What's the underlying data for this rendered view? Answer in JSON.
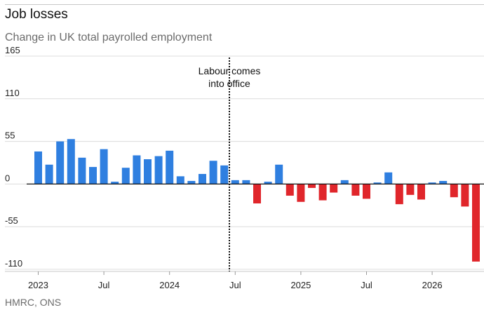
{
  "header": {
    "title": "Job losses",
    "subtitle": "Change in UK total payrolled employment"
  },
  "footer": {
    "source": "HMRC, ONS"
  },
  "chart_data": {
    "type": "bar",
    "title": "Job losses",
    "subtitle": "Change in UK total payrolled employment",
    "xlabel": "",
    "ylabel": "",
    "ylim": [
      -110,
      165
    ],
    "yticks": [
      165,
      110,
      55,
      0,
      -55,
      -110
    ],
    "grid": true,
    "colors": {
      "positive": "#2f7fe0",
      "negative": "#e0262b",
      "annotation_line": "#111111"
    },
    "categories": [
      "2023-01",
      "2023-02",
      "2023-03",
      "2023-04",
      "2023-05",
      "2023-06",
      "2023-07",
      "2023-08",
      "2023-09",
      "2023-10",
      "2023-11",
      "2023-12",
      "2024-01",
      "2024-02",
      "2024-03",
      "2024-04",
      "2024-05",
      "2024-06",
      "2024-07",
      "2024-08",
      "2024-09",
      "2024-10",
      "2024-11",
      "2024-12",
      "2025-01",
      "2025-02",
      "2025-03",
      "2025-04",
      "2025-05",
      "2025-06",
      "2025-07",
      "2025-08",
      "2025-09",
      "2025-10",
      "2025-11",
      "2025-12",
      "2026-01",
      "2026-02",
      "2026-03",
      "2026-04",
      "2026-05"
    ],
    "values": [
      42,
      25,
      55,
      58,
      34,
      22,
      45,
      3,
      21,
      37,
      32,
      36,
      43,
      10,
      4,
      13,
      30,
      24,
      5,
      5,
      -25,
      3,
      25,
      -15,
      -23,
      -5,
      -21,
      -11,
      5,
      -15,
      -19,
      2,
      15,
      -26,
      -14,
      -20,
      2,
      4,
      -17,
      -29,
      -100
    ],
    "x_tick_labels": [
      {
        "label": "2023",
        "category": "2023-01"
      },
      {
        "label": "Jul",
        "category": "2023-07"
      },
      {
        "label": "2024",
        "category": "2024-01"
      },
      {
        "label": "Jul",
        "category": "2024-07"
      },
      {
        "label": "2025",
        "category": "2025-01"
      },
      {
        "label": "Jul",
        "category": "2025-07"
      },
      {
        "label": "2026",
        "category": "2026-01"
      }
    ],
    "annotations": [
      {
        "category": "2024-07",
        "text_lines": [
          "Labour comes",
          "into office"
        ],
        "style": "dotted-vertical-line"
      }
    ]
  }
}
